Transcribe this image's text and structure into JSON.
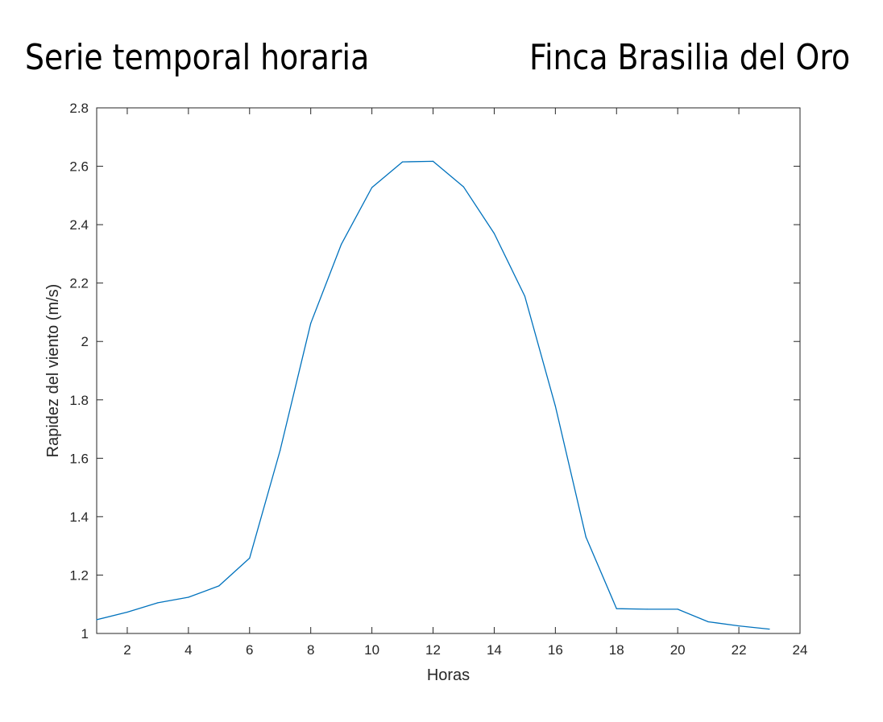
{
  "header": {
    "title_left": "Serie temporal horaria",
    "title_right": "Finca Brasilia del Oro"
  },
  "colors": {
    "line": "#0072BD",
    "axis": "#262626",
    "background": "#ffffff"
  },
  "chart_data": {
    "type": "line",
    "title": "Serie temporal horaria",
    "subtitle": "Finca Brasilia del Oro",
    "xlabel": "Horas",
    "ylabel": "Rapidez del viento (m/s)",
    "xlim": [
      1,
      24
    ],
    "ylim": [
      1,
      2.8
    ],
    "xticks": [
      2,
      4,
      6,
      8,
      10,
      12,
      14,
      16,
      18,
      20,
      22,
      24
    ],
    "yticks": [
      1,
      1.2,
      1.4,
      1.6,
      1.8,
      2,
      2.2,
      2.4,
      2.6,
      2.8
    ],
    "grid": false,
    "legend": false,
    "series": [
      {
        "x": [
          1,
          2,
          3,
          4,
          5,
          6,
          7,
          8,
          9,
          10,
          11,
          12,
          13,
          14,
          15,
          16,
          17,
          18,
          19,
          20,
          21,
          22,
          23
        ],
        "values": [
          1.047,
          1.073,
          1.105,
          1.124,
          1.163,
          1.258,
          1.627,
          2.062,
          2.333,
          2.527,
          2.615,
          2.617,
          2.529,
          2.37,
          2.155,
          1.779,
          1.33,
          1.085,
          1.083,
          1.083,
          1.04,
          1.026,
          1.015
        ]
      }
    ]
  }
}
